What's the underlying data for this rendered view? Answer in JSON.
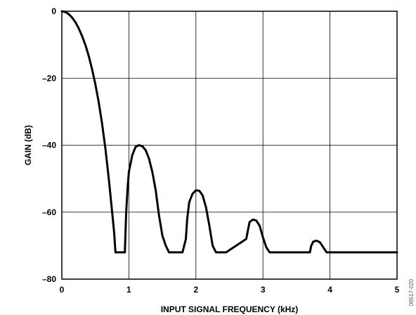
{
  "chart_data": {
    "type": "line",
    "xlabel": "INPUT SIGNAL FREQUENCY (kHz)",
    "ylabel": "GAIN (dB)",
    "xlim": [
      0,
      5
    ],
    "ylim": [
      -80,
      0
    ],
    "x_ticks": [
      "0",
      "1",
      "2",
      "3",
      "4",
      "5"
    ],
    "y_ticks": [
      "0",
      "–20",
      "–40",
      "–60",
      "–80"
    ],
    "grid": true,
    "line_color": "#000000",
    "series": [
      {
        "x": [
          0,
          0.05,
          0.1,
          0.15,
          0.2,
          0.25,
          0.3,
          0.35,
          0.4,
          0.45,
          0.5,
          0.55,
          0.6,
          0.65,
          0.7,
          0.75,
          0.78,
          0.8,
          0.82,
          0.83,
          0.85,
          0.88,
          0.92,
          0.94,
          0.95,
          0.96,
          0.98,
          1.0,
          1.05,
          1.1,
          1.15,
          1.2,
          1.25,
          1.3,
          1.35,
          1.4,
          1.45,
          1.5,
          1.55,
          1.6,
          1.63,
          1.65,
          1.8,
          1.85,
          1.87,
          1.9,
          1.95,
          2.0,
          2.05,
          2.1,
          2.15,
          2.2,
          2.25,
          2.3,
          2.35,
          2.4,
          2.43,
          2.45,
          2.75,
          2.78,
          2.8,
          2.85,
          2.9,
          2.95,
          3.0,
          3.05,
          3.1,
          3.15,
          3.2,
          3.23,
          3.25,
          3.7,
          3.72,
          3.75,
          3.8,
          3.85,
          3.9,
          3.95,
          4.0,
          4.02,
          4.05,
          5.0
        ],
        "y": [
          0,
          -0.2,
          -0.8,
          -1.8,
          -3.2,
          -5.0,
          -7.3,
          -10.0,
          -13.3,
          -17.2,
          -21.8,
          -27.2,
          -33.5,
          -41.0,
          -50.0,
          -60.0,
          -66.0,
          -72,
          -72,
          -72,
          -72,
          -72,
          -72,
          -72,
          -66.0,
          -60.0,
          -53.0,
          -48.0,
          -43.0,
          -40.5,
          -40.0,
          -40.3,
          -41.5,
          -44.0,
          -48.0,
          -53.5,
          -61.0,
          -67.0,
          -70.0,
          -72,
          -72,
          -72,
          -72,
          -68.0,
          -62.0,
          -57.0,
          -54.5,
          -53.5,
          -53.6,
          -55.0,
          -58.5,
          -64.0,
          -70.0,
          -72,
          -72,
          -72,
          -72,
          -72,
          -68.0,
          -65.0,
          -63.0,
          -62.2,
          -62.5,
          -64.0,
          -67.5,
          -70.5,
          -72,
          -72,
          -72,
          -72,
          -72,
          -72,
          -70.0,
          -68.8,
          -68.5,
          -69.0,
          -70.5,
          -72,
          -72,
          -72,
          -72,
          -72
        ]
      }
    ]
  },
  "side_id": "06517-020"
}
